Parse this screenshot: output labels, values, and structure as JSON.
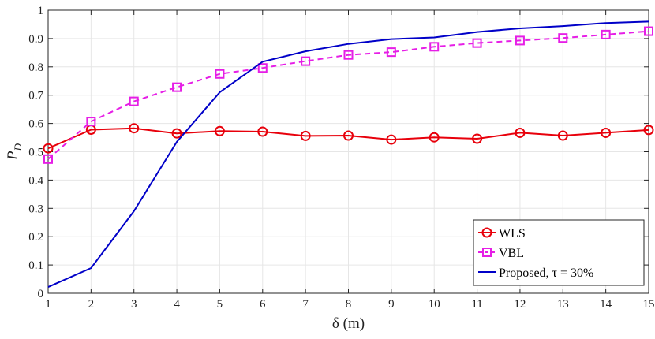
{
  "chart_data": {
    "type": "line",
    "title": "",
    "xlabel": "δ (m)",
    "ylabel": "P_D",
    "ylabel_main": "P",
    "ylabel_sub": "D",
    "x": [
      1,
      2,
      3,
      4,
      5,
      6,
      7,
      8,
      9,
      10,
      11,
      12,
      13,
      14,
      15
    ],
    "xlim": [
      1,
      15
    ],
    "ylim": [
      0,
      1
    ],
    "xticks": [
      1,
      2,
      3,
      4,
      5,
      6,
      7,
      8,
      9,
      10,
      11,
      12,
      13,
      14,
      15
    ],
    "yticks": [
      0,
      0.1,
      0.2,
      0.3,
      0.4,
      0.5,
      0.6,
      0.7,
      0.8,
      0.9,
      1
    ],
    "ytick_labels": [
      "0",
      "0.1",
      "0.2",
      "0.3",
      "0.4",
      "0.5",
      "0.6",
      "0.7",
      "0.8",
      "0.9",
      "1"
    ],
    "grid": true,
    "legend_position": "bottom-right",
    "series": [
      {
        "name": "WLS",
        "color": "#e8000b",
        "line_style": "solid",
        "marker": "circle",
        "values": [
          0.512,
          0.578,
          0.583,
          0.565,
          0.573,
          0.571,
          0.556,
          0.557,
          0.543,
          0.551,
          0.546,
          0.567,
          0.557,
          0.567,
          0.577
        ]
      },
      {
        "name": "VBL",
        "color": "#e61ee6",
        "line_style": "dashed",
        "marker": "square",
        "values": [
          0.474,
          0.607,
          0.678,
          0.728,
          0.775,
          0.796,
          0.82,
          0.842,
          0.852,
          0.871,
          0.884,
          0.893,
          0.902,
          0.914,
          0.926
        ]
      },
      {
        "name": "Proposed, τ = 30%",
        "color": "#0000c8",
        "line_style": "solid",
        "marker": "none",
        "values": [
          0.022,
          0.089,
          0.29,
          0.535,
          0.71,
          0.818,
          0.855,
          0.881,
          0.898,
          0.904,
          0.923,
          0.936,
          0.944,
          0.955,
          0.96
        ]
      }
    ]
  }
}
